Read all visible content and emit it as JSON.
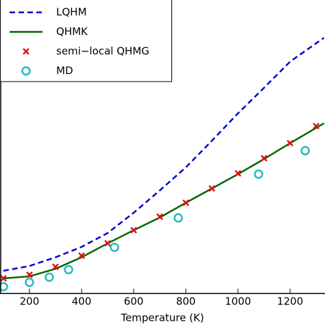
{
  "chart_data": {
    "type": "line",
    "x_label": "Temperature (K)",
    "xlim": [
      87,
      1334
    ],
    "ylim": [
      0,
      7.38
    ],
    "xticks": [
      200,
      400,
      600,
      800,
      1000,
      1200
    ],
    "legend": "upper left",
    "series": [
      {
        "name": "LQHM",
        "color": "#0000cc",
        "mark": "dashed-line",
        "x": [
          100,
          200,
          300,
          400,
          500,
          600,
          700,
          800,
          900,
          1000,
          1100,
          1200,
          1330
        ],
        "values": [
          0.57,
          0.69,
          0.91,
          1.17,
          1.52,
          2.03,
          2.59,
          3.17,
          3.84,
          4.53,
          5.17,
          5.83,
          6.43
        ]
      },
      {
        "name": "QHMK",
        "color": "#006600",
        "mark": "line",
        "x": [
          100,
          200,
          300,
          400,
          500,
          600,
          700,
          800,
          900,
          1000,
          1100,
          1200,
          1330
        ],
        "values": [
          0.38,
          0.43,
          0.62,
          0.91,
          1.26,
          1.59,
          1.91,
          2.28,
          2.64,
          3.0,
          3.38,
          3.78,
          4.28
        ]
      },
      {
        "name": "semi−local QHMG",
        "color": "#dd1111",
        "mark": "cross",
        "x": [
          100,
          200,
          300,
          400,
          500,
          600,
          700,
          800,
          900,
          1000,
          1100,
          1200,
          1300
        ],
        "values": [
          0.38,
          0.47,
          0.67,
          0.95,
          1.26,
          1.59,
          1.93,
          2.28,
          2.64,
          3.02,
          3.4,
          3.78,
          4.21
        ]
      },
      {
        "name": "MD",
        "color": "#22bbbb",
        "mark": "circle",
        "x": [
          100,
          200,
          276,
          350,
          526,
          771,
          1079,
          1258
        ],
        "values": [
          0.17,
          0.28,
          0.41,
          0.6,
          1.16,
          1.9,
          3.0,
          3.59
        ]
      }
    ]
  }
}
